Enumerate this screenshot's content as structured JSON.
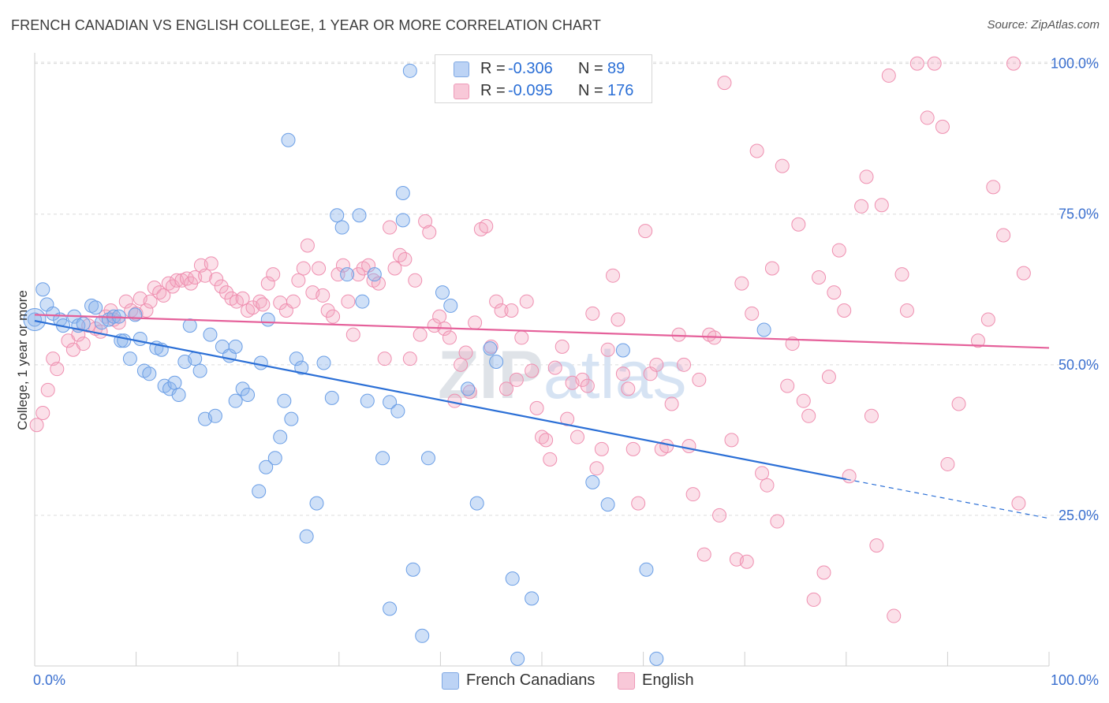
{
  "title": "FRENCH CANADIAN VS ENGLISH COLLEGE, 1 YEAR OR MORE CORRELATION CHART",
  "source": "Source: ZipAtlas.com",
  "watermark": "ZIPatlas",
  "legend": {
    "r_label": "R =",
    "n_label": "N =",
    "series": [
      {
        "name": "French Canadians",
        "r": "-0.306",
        "n": "89",
        "color": "#8cb4ec"
      },
      {
        "name": "English",
        "r": "-0.095",
        "n": "176",
        "color": "#f4a6bf"
      }
    ]
  },
  "chart_data": {
    "type": "scatter",
    "title": "FRENCH CANADIAN VS ENGLISH COLLEGE, 1 YEAR OR MORE CORRELATION CHART",
    "xlabel": "",
    "ylabel": "College, 1 year or more",
    "xlim": [
      0,
      100
    ],
    "ylim": [
      0,
      101
    ],
    "x_tick_labels": [
      "0.0%",
      "100.0%"
    ],
    "y_ticks": [
      25,
      50,
      75,
      100
    ],
    "y_tick_labels": [
      "25.0%",
      "50.0%",
      "75.0%",
      "100.0%"
    ],
    "grid": true,
    "series": [
      {
        "name": "French Canadians",
        "color": "#6a9ee6",
        "line_color": "#2b6fd6",
        "trend": {
          "x0": 0,
          "y0": 57.3,
          "x1": 80,
          "y1": 31.0,
          "dash_to_x": 100,
          "dash_to_y": 24.5
        },
        "points": [
          [
            0,
            57.5
          ],
          [
            0.8,
            62.5
          ],
          [
            1.2,
            60
          ],
          [
            1.8,
            58.5
          ],
          [
            2.5,
            57.5
          ],
          [
            2.8,
            56.5
          ],
          [
            3.9,
            58
          ],
          [
            4.3,
            56.5
          ],
          [
            4.8,
            56.8
          ],
          [
            5.6,
            59.8
          ],
          [
            6,
            59.5
          ],
          [
            6.6,
            57
          ],
          [
            7.3,
            57.5
          ],
          [
            7.8,
            58
          ],
          [
            8.3,
            58
          ],
          [
            8.5,
            54
          ],
          [
            8.8,
            54
          ],
          [
            9.4,
            51
          ],
          [
            9.9,
            58.3
          ],
          [
            10.4,
            54.3
          ],
          [
            10.8,
            49
          ],
          [
            11.3,
            48.5
          ],
          [
            12,
            52.8
          ],
          [
            12.5,
            52.5
          ],
          [
            12.8,
            46.5
          ],
          [
            13.3,
            46
          ],
          [
            13.8,
            47
          ],
          [
            14.2,
            45
          ],
          [
            14.8,
            50.5
          ],
          [
            15.3,
            56.5
          ],
          [
            15.8,
            51
          ],
          [
            16.3,
            49
          ],
          [
            16.8,
            41
          ],
          [
            17.3,
            55
          ],
          [
            17.8,
            41.5
          ],
          [
            18.5,
            53
          ],
          [
            19.2,
            51.5
          ],
          [
            19.8,
            44
          ],
          [
            19.8,
            53
          ],
          [
            20.5,
            46
          ],
          [
            21,
            45
          ],
          [
            22.1,
            29
          ],
          [
            22.3,
            50.3
          ],
          [
            22.8,
            33
          ],
          [
            23,
            57.5
          ],
          [
            23.7,
            34.5
          ],
          [
            24.2,
            38
          ],
          [
            24.6,
            44
          ],
          [
            25,
            87.3
          ],
          [
            25.3,
            41
          ],
          [
            25.8,
            51
          ],
          [
            26.3,
            49.5
          ],
          [
            26.8,
            21.5
          ],
          [
            27.8,
            27
          ],
          [
            28.5,
            50.3
          ],
          [
            29.3,
            44.5
          ],
          [
            29.8,
            74.8
          ],
          [
            30.3,
            72.8
          ],
          [
            30.8,
            65
          ],
          [
            32,
            74.8
          ],
          [
            32.3,
            60.5
          ],
          [
            32.8,
            44
          ],
          [
            33.5,
            65
          ],
          [
            34.3,
            34.5
          ],
          [
            35,
            43.8
          ],
          [
            35,
            9.5
          ],
          [
            35.8,
            42.3
          ],
          [
            36.3,
            78.5
          ],
          [
            36.3,
            74
          ],
          [
            37,
            98.8
          ],
          [
            37.3,
            16
          ],
          [
            38.2,
            5
          ],
          [
            38.8,
            34.5
          ],
          [
            40.2,
            62
          ],
          [
            41,
            59.8
          ],
          [
            42.7,
            46
          ],
          [
            43.6,
            27
          ],
          [
            44.9,
            52.7
          ],
          [
            45.5,
            50.5
          ],
          [
            47.1,
            14.5
          ],
          [
            47.6,
            1.2
          ],
          [
            49,
            11.2
          ],
          [
            55,
            30.5
          ],
          [
            56.5,
            26.8
          ],
          [
            58,
            52.4
          ],
          [
            60.3,
            16
          ],
          [
            61.3,
            1.2
          ],
          [
            71.9,
            55.8
          ]
        ]
      },
      {
        "name": "English",
        "color": "#f08cb0",
        "line_color": "#e5609a",
        "trend": {
          "x0": 0,
          "y0": 58.3,
          "x1": 100,
          "y1": 52.8
        },
        "points": [
          [
            0.2,
            40
          ],
          [
            0.8,
            42
          ],
          [
            1.3,
            45.8
          ],
          [
            1.8,
            51
          ],
          [
            2.2,
            49.3
          ],
          [
            3.3,
            54
          ],
          [
            3.8,
            52.5
          ],
          [
            4.3,
            55
          ],
          [
            4.8,
            53.5
          ],
          [
            5.3,
            56.5
          ],
          [
            6,
            56
          ],
          [
            6.5,
            55.5
          ],
          [
            7,
            58
          ],
          [
            7.5,
            59
          ],
          [
            7.8,
            57.5
          ],
          [
            8.3,
            57
          ],
          [
            9,
            60.5
          ],
          [
            9.5,
            59
          ],
          [
            10,
            58.5
          ],
          [
            10.4,
            61
          ],
          [
            11,
            59
          ],
          [
            11.4,
            60.5
          ],
          [
            11.8,
            62.8
          ],
          [
            12.3,
            62
          ],
          [
            12.7,
            61.5
          ],
          [
            13.2,
            63.5
          ],
          [
            13.6,
            63
          ],
          [
            14,
            64
          ],
          [
            14.5,
            64
          ],
          [
            15,
            64.3
          ],
          [
            15.4,
            63.5
          ],
          [
            15.8,
            64.5
          ],
          [
            16.4,
            66.5
          ],
          [
            16.8,
            64.8
          ],
          [
            17.4,
            66.8
          ],
          [
            17.9,
            64.2
          ],
          [
            18.4,
            63
          ],
          [
            18.9,
            62
          ],
          [
            19.4,
            61
          ],
          [
            19.9,
            60.5
          ],
          [
            20.5,
            61
          ],
          [
            21,
            59
          ],
          [
            21.5,
            59.5
          ],
          [
            22.2,
            60.5
          ],
          [
            22.5,
            60
          ],
          [
            23,
            63.5
          ],
          [
            23.5,
            65
          ],
          [
            24.2,
            60.3
          ],
          [
            24.8,
            59
          ],
          [
            25.5,
            60.5
          ],
          [
            26,
            64
          ],
          [
            26.5,
            66
          ],
          [
            26.9,
            69.8
          ],
          [
            27.4,
            62
          ],
          [
            28,
            66
          ],
          [
            28.4,
            61.5
          ],
          [
            28.9,
            59
          ],
          [
            29.4,
            58
          ],
          [
            29.9,
            65
          ],
          [
            30.4,
            66.5
          ],
          [
            30.9,
            60.5
          ],
          [
            31.4,
            55
          ],
          [
            31.9,
            65
          ],
          [
            32.4,
            66
          ],
          [
            32.9,
            66.5
          ],
          [
            33.4,
            64
          ],
          [
            33.9,
            63.5
          ],
          [
            34.5,
            51
          ],
          [
            35,
            72.8
          ],
          [
            35.5,
            66
          ],
          [
            36,
            68.2
          ],
          [
            36.5,
            67.5
          ],
          [
            37,
            51
          ],
          [
            37.5,
            64
          ],
          [
            38,
            55
          ],
          [
            38.5,
            73.8
          ],
          [
            38.9,
            72
          ],
          [
            39.4,
            56.5
          ],
          [
            39.9,
            58
          ],
          [
            40.4,
            56
          ],
          [
            40.9,
            54.5
          ],
          [
            41.4,
            44
          ],
          [
            42,
            50
          ],
          [
            42.5,
            52
          ],
          [
            42.9,
            45.5
          ],
          [
            43.4,
            57
          ],
          [
            44,
            72.5
          ],
          [
            44.5,
            73
          ],
          [
            45,
            53
          ],
          [
            45.5,
            60.5
          ],
          [
            46,
            59
          ],
          [
            46.5,
            46
          ],
          [
            47,
            59
          ],
          [
            47.5,
            47.5
          ],
          [
            48,
            54.5
          ],
          [
            48.5,
            60.5
          ],
          [
            49,
            49
          ],
          [
            49.5,
            42.8
          ],
          [
            50,
            38
          ],
          [
            50.4,
            37.5
          ],
          [
            50.8,
            34.3
          ],
          [
            51.3,
            49.5
          ],
          [
            52,
            53
          ],
          [
            52.5,
            41
          ],
          [
            53,
            47
          ],
          [
            53.5,
            38
          ],
          [
            54,
            47.5
          ],
          [
            54.5,
            46.5
          ],
          [
            55,
            58.5
          ],
          [
            55.4,
            32.8
          ],
          [
            55.9,
            36
          ],
          [
            56.5,
            52.5
          ],
          [
            57,
            64.8
          ],
          [
            57.5,
            57.5
          ],
          [
            58,
            48.5
          ],
          [
            58.5,
            46
          ],
          [
            59,
            36
          ],
          [
            59.5,
            27
          ],
          [
            60.2,
            72.2
          ],
          [
            60.7,
            48.5
          ],
          [
            61.3,
            50
          ],
          [
            61.8,
            36
          ],
          [
            62.3,
            36.5
          ],
          [
            62.8,
            43.5
          ],
          [
            63.5,
            55
          ],
          [
            64,
            50
          ],
          [
            64.5,
            36.5
          ],
          [
            64.9,
            28.5
          ],
          [
            65.5,
            47.5
          ],
          [
            66,
            18.5
          ],
          [
            66.5,
            55
          ],
          [
            67,
            54.5
          ],
          [
            67.5,
            25
          ],
          [
            68,
            96.8
          ],
          [
            68.7,
            37.5
          ],
          [
            69.2,
            17.7
          ],
          [
            69.7,
            63.5
          ],
          [
            70.2,
            17.3
          ],
          [
            70.7,
            58.5
          ],
          [
            71.2,
            85.5
          ],
          [
            71.7,
            32
          ],
          [
            72.2,
            30
          ],
          [
            72.7,
            66
          ],
          [
            73.2,
            24
          ],
          [
            73.7,
            83
          ],
          [
            74.2,
            46.5
          ],
          [
            74.7,
            53.5
          ],
          [
            75.3,
            73.3
          ],
          [
            75.8,
            44
          ],
          [
            76.3,
            41.5
          ],
          [
            76.8,
            11
          ],
          [
            77.3,
            64.5
          ],
          [
            77.8,
            15.5
          ],
          [
            78.3,
            48
          ],
          [
            78.8,
            62
          ],
          [
            79.3,
            69
          ],
          [
            79.8,
            59
          ],
          [
            80.3,
            31.5
          ],
          [
            81.5,
            76.3
          ],
          [
            82,
            81.2
          ],
          [
            82.5,
            41.5
          ],
          [
            83,
            20
          ],
          [
            83.5,
            76.5
          ],
          [
            84.2,
            98
          ],
          [
            84.7,
            8.3
          ],
          [
            85.5,
            65
          ],
          [
            86,
            59
          ],
          [
            87,
            100
          ],
          [
            88,
            91
          ],
          [
            88.7,
            100
          ],
          [
            89.5,
            89.5
          ],
          [
            90,
            33.5
          ],
          [
            91.1,
            43.5
          ],
          [
            93,
            54
          ],
          [
            94,
            57.5
          ],
          [
            94.5,
            79.5
          ],
          [
            95.5,
            71.5
          ],
          [
            96.5,
            100
          ],
          [
            97,
            27
          ],
          [
            97.5,
            65.2
          ]
        ]
      }
    ]
  }
}
